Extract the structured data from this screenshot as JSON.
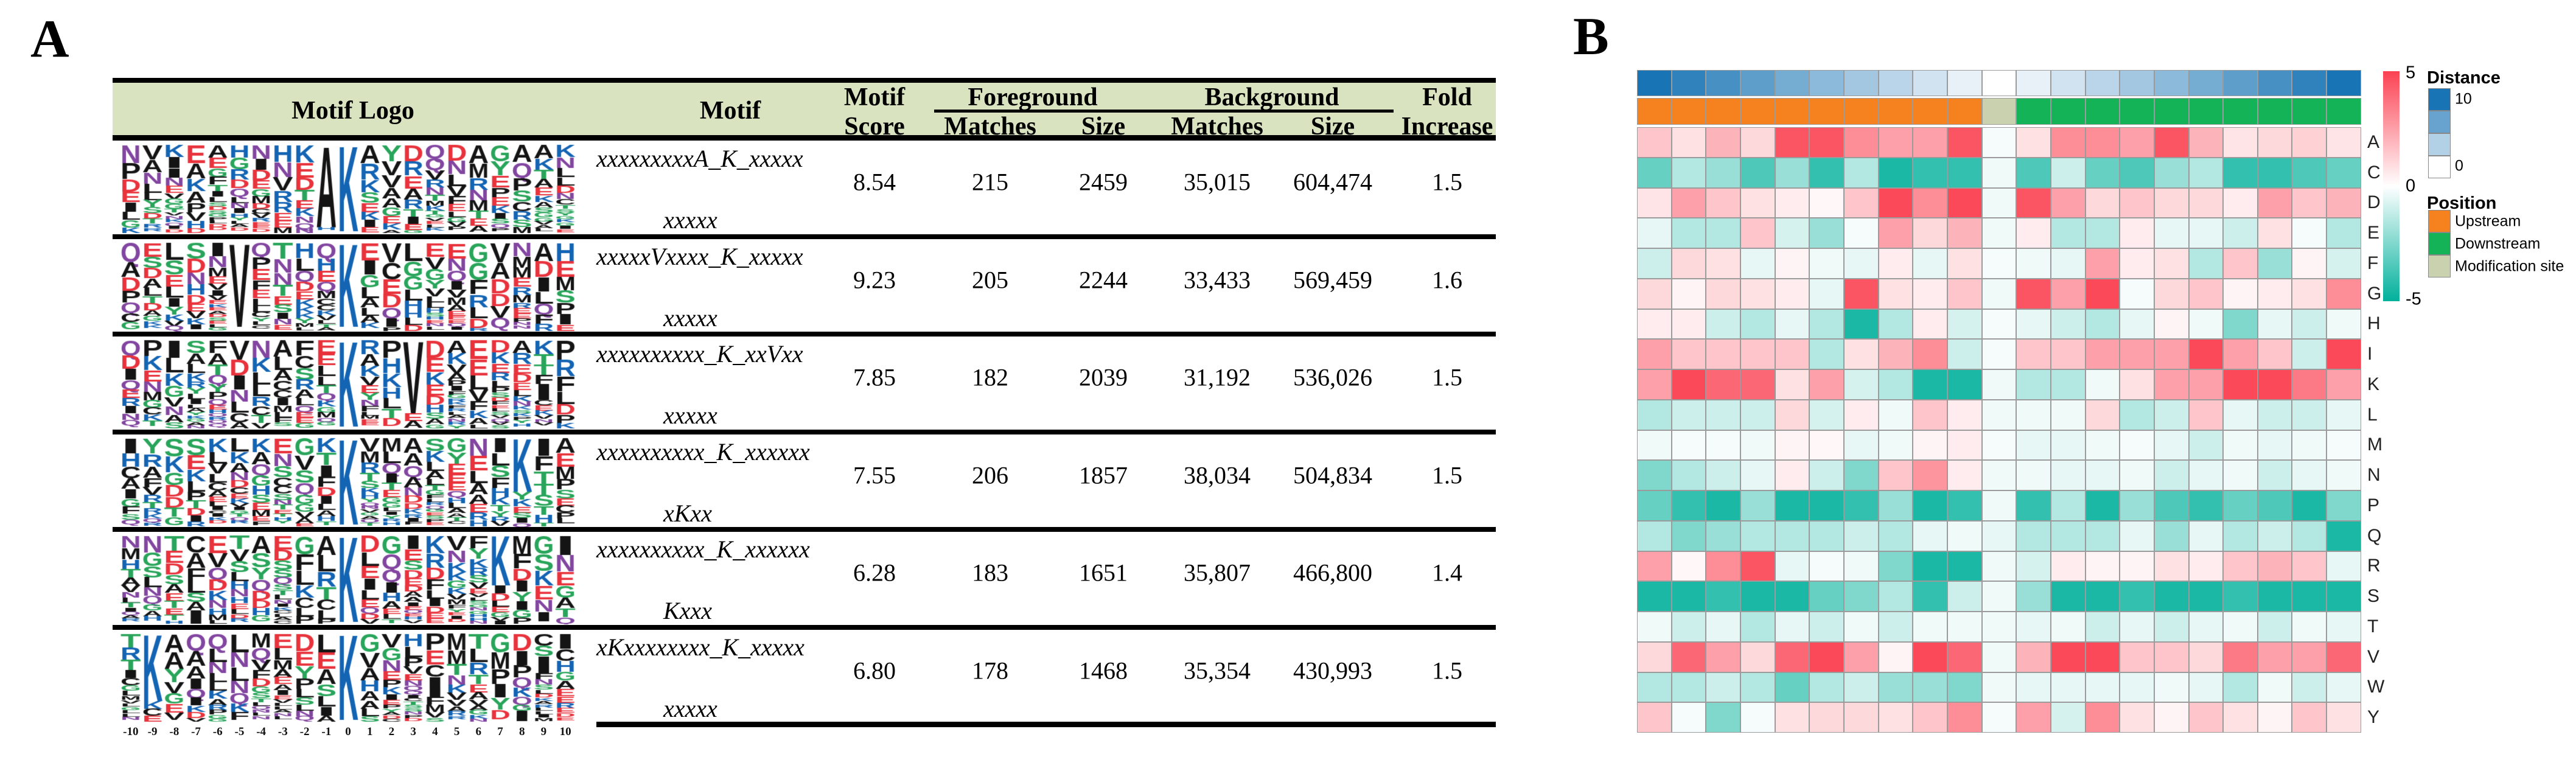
{
  "panel_a": {
    "label": "A",
    "header": {
      "motif_logo": "Motif Logo",
      "motif": "Motif",
      "motif_score_line1": "Motif",
      "motif_score_line2": "Score",
      "foreground": "Foreground",
      "background": "Background",
      "matches": "Matches",
      "size": "Size",
      "fold_line1": "Fold",
      "fold_line2": "Increase"
    },
    "header_bg": "#d9e3bf"
  },
  "panel_b": {
    "label": "B",
    "colorbar": {
      "max_label": "5",
      "mid_label": "0",
      "min_label": "-5"
    },
    "legend_distance": {
      "title": "Distance",
      "max_label": "10",
      "min_label": "0"
    },
    "legend_position": {
      "title": "Position",
      "items": [
        {
          "label": "Upstream",
          "color": "#F5821F"
        },
        {
          "label": "Downstream",
          "color": "#14B358"
        },
        {
          "label": "Modification site",
          "color": "#C9D1AE"
        }
      ]
    },
    "colors": {
      "heat_positive": "#FB4152",
      "heat_negative": "#00B09B",
      "distance_max": "#1874B4",
      "grid_line": "#9B9B9B"
    }
  },
  "chart_data": [
    {
      "type": "table",
      "title": "Motif enrichment table",
      "columns": [
        "Motif Logo",
        "Motif",
        "Motif Score",
        "Foreground Matches",
        "Foreground Size",
        "Background Matches",
        "Background Size",
        "Fold Increase"
      ],
      "x_axis_ticks": [
        "-10",
        "-9",
        "-8",
        "-7",
        "-6",
        "-5",
        "-4",
        "-3",
        "-2",
        "-1",
        "0",
        "1",
        "2",
        "3",
        "4",
        "5",
        "6",
        "7",
        "8",
        "9",
        "10"
      ],
      "rows": [
        {
          "motif_line1": "xxxxxxxxxA_K_xxxxx",
          "motif_line2": "xxxxx",
          "score": "8.54",
          "fg_matches": "215",
          "fg_size": "2459",
          "bg_matches": "35,015",
          "bg_size": "604,474",
          "fold": "1.5",
          "logo_anchors": [
            {
              "pos": -1,
              "letter": "A",
              "frac": 0.95
            },
            {
              "pos": 0,
              "letter": "K",
              "frac": 1.0
            }
          ]
        },
        {
          "motif_line1": "xxxxxVxxxx_K_xxxxx",
          "motif_line2": "xxxxx",
          "score": "9.23",
          "fg_matches": "205",
          "fg_size": "2244",
          "bg_matches": "33,433",
          "bg_size": "569,459",
          "fold": "1.6",
          "logo_anchors": [
            {
              "pos": -5,
              "letter": "V",
              "frac": 0.97
            },
            {
              "pos": 0,
              "letter": "K",
              "frac": 0.97
            }
          ]
        },
        {
          "motif_line1": "xxxxxxxxxx_K_xxVxx",
          "motif_line2": "xxxxx",
          "score": "7.85",
          "fg_matches": "182",
          "fg_size": "2039",
          "bg_matches": "31,192",
          "bg_size": "536,026",
          "fold": "1.5",
          "logo_anchors": [
            {
              "pos": 0,
              "letter": "K",
              "frac": 1.0
            },
            {
              "pos": 3,
              "letter": "V",
              "frac": 0.85
            }
          ]
        },
        {
          "motif_line1": "xxxxxxxxxx_K_xxxxxx",
          "motif_line2": "xKxx",
          "score": "7.55",
          "fg_matches": "206",
          "fg_size": "1857",
          "bg_matches": "38,034",
          "bg_size": "504,834",
          "fold": "1.5",
          "logo_anchors": [
            {
              "pos": 0,
              "letter": "K",
              "frac": 1.0
            },
            {
              "pos": 8,
              "letter": "K",
              "frac": 0.62
            }
          ]
        },
        {
          "motif_line1": "xxxxxxxxxx_K_xxxxxx",
          "motif_line2": "Kxxx",
          "score": "6.28",
          "fg_matches": "183",
          "fg_size": "1651",
          "bg_matches": "35,807",
          "bg_size": "466,800",
          "fold": "1.4",
          "logo_anchors": [
            {
              "pos": 0,
              "letter": "K",
              "frac": 1.0
            },
            {
              "pos": 7,
              "letter": "K",
              "frac": 0.58
            }
          ]
        },
        {
          "motif_line1": "xKxxxxxxxx_K_xxxxx",
          "motif_line2": "xxxxx",
          "score": "6.80",
          "fg_matches": "178",
          "fg_size": "1468",
          "bg_matches": "35,354",
          "bg_size": "430,993",
          "fold": "1.5",
          "logo_anchors": [
            {
              "pos": -9,
              "letter": "K",
              "frac": 0.78
            },
            {
              "pos": 0,
              "letter": "K",
              "frac": 1.0
            }
          ]
        }
      ]
    },
    {
      "type": "heatmap",
      "x_positions": [
        -10,
        -9,
        -8,
        -7,
        -6,
        -5,
        -4,
        -3,
        -2,
        -1,
        0,
        1,
        2,
        3,
        4,
        5,
        6,
        7,
        8,
        9,
        10
      ],
      "row_labels": [
        "A",
        "C",
        "D",
        "E",
        "F",
        "G",
        "H",
        "I",
        "K",
        "L",
        "M",
        "N",
        "P",
        "Q",
        "R",
        "S",
        "T",
        "V",
        "W",
        "Y"
      ],
      "value_range": [
        -5,
        5
      ],
      "annotations": {
        "distance": [
          10,
          9,
          8,
          7,
          6,
          5,
          4,
          3,
          2,
          1,
          0,
          1,
          2,
          3,
          4,
          5,
          6,
          7,
          8,
          9,
          10
        ],
        "position": [
          "u",
          "u",
          "u",
          "u",
          "u",
          "u",
          "u",
          "u",
          "u",
          "u",
          "m",
          "d",
          "d",
          "d",
          "d",
          "d",
          "d",
          "d",
          "d",
          "d",
          "d"
        ]
      },
      "values": {
        "A": [
          1.5,
          0.8,
          2,
          1,
          4.5,
          4.5,
          3,
          2.5,
          2.5,
          4.5,
          -0.2,
          0.8,
          3,
          3,
          2.5,
          4.5,
          2,
          0.7,
          1,
          1.2,
          0.7
        ],
        "C": [
          -3,
          -1.5,
          -2,
          -3.5,
          -2,
          -4,
          -1.5,
          -4.5,
          -4,
          -4,
          -0.3,
          -3.5,
          -1,
          -3,
          -3.5,
          -2,
          -1.5,
          -4,
          -4,
          -3.5,
          -3
        ],
        "D": [
          0.7,
          2.5,
          1.5,
          0.8,
          0.5,
          0.2,
          1.5,
          4.8,
          3,
          4.8,
          -0.3,
          4.5,
          2.5,
          1,
          1.5,
          1,
          1,
          0.5,
          2.5,
          1.5,
          2
        ],
        "E": [
          -0.5,
          -1.5,
          -1.5,
          1.5,
          -0.8,
          -2,
          -0.2,
          2.5,
          1,
          2,
          -0.3,
          0.5,
          -1.5,
          -1.5,
          0.5,
          -0.5,
          -0.5,
          -1,
          0.8,
          -0.2,
          -1.5
        ],
        "F": [
          -1,
          1,
          0.8,
          -0.5,
          0.3,
          -0.3,
          -0.5,
          0.5,
          -0.5,
          0.8,
          -0.2,
          -0.3,
          -0.5,
          2.5,
          0.5,
          0.8,
          -1.5,
          1.5,
          -2,
          0.3,
          -0.8
        ],
        "G": [
          1,
          0.3,
          1,
          0.8,
          0.5,
          -0.5,
          4.5,
          0.8,
          0.5,
          1.5,
          -0.3,
          4.5,
          2.5,
          4.8,
          -0.2,
          1,
          1.5,
          0.3,
          0.5,
          0.8,
          3
        ],
        "H": [
          0.5,
          0.5,
          -1,
          -1.5,
          -0.5,
          -1.5,
          -4.5,
          -1.5,
          0.5,
          -0.8,
          -0.2,
          -0.5,
          -1,
          -1.5,
          -0.5,
          0.3,
          -0.3,
          -2.5,
          -0.5,
          -1,
          -0.3
        ],
        "I": [
          2.5,
          1.5,
          1.5,
          1.5,
          1.5,
          -1.5,
          0.8,
          2,
          3,
          -1,
          -0.2,
          1.5,
          1.5,
          2.5,
          2.5,
          2.5,
          4.8,
          2.5,
          1.5,
          -1,
          4.8
        ],
        "K": [
          2.5,
          4.8,
          4,
          4,
          0.8,
          2.5,
          -0.8,
          -1.5,
          -4.5,
          -4.5,
          -0.3,
          -1.5,
          -1.5,
          -0.3,
          0.8,
          2.5,
          2.5,
          4.8,
          4.8,
          3.5,
          2.5
        ],
        "L": [
          -1.5,
          -1,
          -1,
          -1,
          1,
          -0.8,
          0.5,
          -0.3,
          1.5,
          0.5,
          -0.3,
          -0.3,
          -0.3,
          1,
          -1.5,
          -1,
          1.5,
          -0.5,
          -1,
          -1,
          -0.5
        ],
        "M": [
          -0.3,
          -0.2,
          -0.2,
          -0.3,
          0.3,
          0.2,
          -0.5,
          -0.3,
          0.3,
          0.5,
          -0.2,
          -0.5,
          -0.5,
          -0.3,
          -0.2,
          -0.5,
          -1,
          -0.3,
          -0.5,
          -0.3,
          -0.2
        ],
        "N": [
          -2.5,
          -1.5,
          -1,
          -0.5,
          0.5,
          -1,
          -2.5,
          1.5,
          2.8,
          0.5,
          -0.3,
          -0.3,
          -0.5,
          -0.5,
          -0.3,
          -1,
          -0.5,
          -0.3,
          -1,
          -0.5,
          -0.3
        ],
        "P": [
          -3,
          -4,
          -4.5,
          -2,
          -4.5,
          -4.5,
          -4,
          -2,
          -4.5,
          -4,
          -0.3,
          -4,
          -1.5,
          -4.5,
          -2,
          -3.5,
          -4,
          -3,
          -3.5,
          -4.5,
          -2.5
        ],
        "Q": [
          -1.5,
          -2.5,
          -2,
          -1.5,
          -1.5,
          -1.5,
          -1,
          -1.5,
          -0.5,
          -0.3,
          -0.5,
          -1.5,
          -1.5,
          -1.5,
          -0.5,
          -2,
          -0.5,
          -1.5,
          -1,
          -1.5,
          -4.5
        ],
        "R": [
          2.5,
          0.2,
          3,
          4.5,
          -0.5,
          -0.2,
          -0.3,
          -2.5,
          -4.5,
          -4.5,
          -0.3,
          -0.8,
          0.5,
          0.3,
          0.3,
          0.8,
          0.5,
          1.5,
          2,
          1.5,
          -0.5
        ],
        "S": [
          -4.5,
          -4.5,
          -4,
          -4.5,
          -4.5,
          -3,
          -2.5,
          -1.5,
          -4,
          -1,
          -0.3,
          -2,
          -4.5,
          -4.5,
          -4,
          -4.5,
          -4.5,
          -4,
          -4.5,
          -4.5,
          -4.5
        ],
        "T": [
          -0.3,
          -1,
          -0.5,
          -1.5,
          -0.5,
          -1,
          -0.3,
          -1,
          -0.3,
          -0.3,
          -0.3,
          -0.5,
          -0.3,
          -1,
          -0.5,
          -1,
          -0.5,
          -0.3,
          -1,
          -0.3,
          -0.5
        ],
        "V": [
          1,
          4,
          2.5,
          1,
          4,
          4.8,
          2.5,
          0.3,
          4.8,
          4,
          -0.3,
          2,
          4.8,
          4.8,
          1.5,
          1.5,
          1,
          3.5,
          2.5,
          2.5,
          4
        ],
        "W": [
          -1.5,
          -1.5,
          -1,
          -1.5,
          -3,
          -1.5,
          -1,
          -2,
          -2,
          -2.5,
          -0.3,
          -0.5,
          -0.5,
          -0.5,
          -0.5,
          -0.3,
          -0.5,
          -1.5,
          -0.3,
          -1,
          -0.5
        ],
        "Y": [
          1.5,
          -0.2,
          -2.5,
          -0.2,
          0.8,
          1,
          1,
          0.8,
          1.5,
          3,
          -0.2,
          2.5,
          -0.8,
          3,
          0.8,
          0.3,
          1.5,
          0.8,
          0.3,
          1.5,
          0.8
        ]
      }
    }
  ]
}
